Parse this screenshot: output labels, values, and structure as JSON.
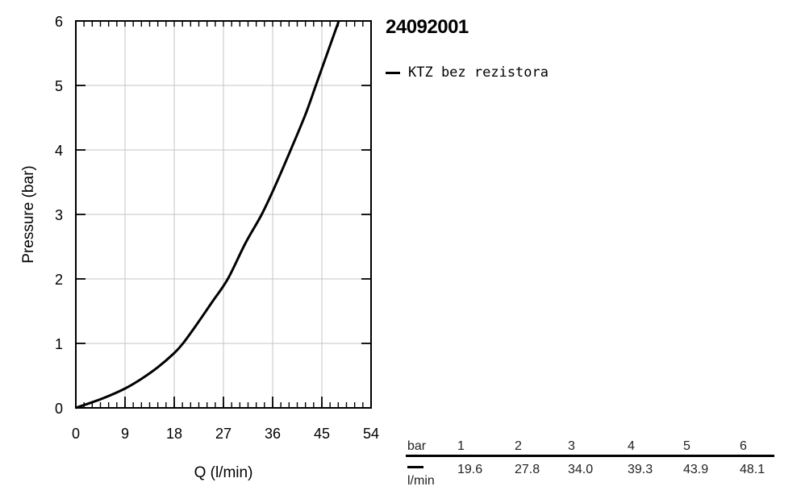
{
  "chart_data": {
    "type": "line",
    "title": "24092001",
    "xlabel": "Q (l/min)",
    "ylabel": "Pressure (bar)",
    "xlim": [
      0,
      54
    ],
    "ylim": [
      0,
      6
    ],
    "xticks": [
      "0",
      "9",
      "18",
      "27",
      "36",
      "45",
      "54"
    ],
    "yticks": [
      "0",
      "1",
      "2",
      "3",
      "4",
      "5",
      "6"
    ],
    "grid": true,
    "legend_position": "right",
    "series": [
      {
        "name": "KTZ bez rezistora",
        "color": "#000000",
        "x": [
          0,
          5,
          9,
          12,
          15,
          18,
          19.6,
          22,
          25,
          27.8,
          31,
          34,
          36.5,
          39.3,
          42,
          43.9,
          46,
          48.1
        ],
        "y": [
          0,
          0.15,
          0.3,
          0.45,
          0.63,
          0.85,
          1,
          1.28,
          1.65,
          2,
          2.55,
          3,
          3.45,
          4,
          4.55,
          5,
          5.5,
          6
        ]
      }
    ]
  },
  "table": {
    "header_label": "bar",
    "unit_label": "l/min",
    "pressures": [
      "1",
      "2",
      "3",
      "4",
      "5",
      "6"
    ],
    "flows": [
      "19.6",
      "27.8",
      "34.0",
      "39.3",
      "43.9",
      "48.1"
    ]
  }
}
